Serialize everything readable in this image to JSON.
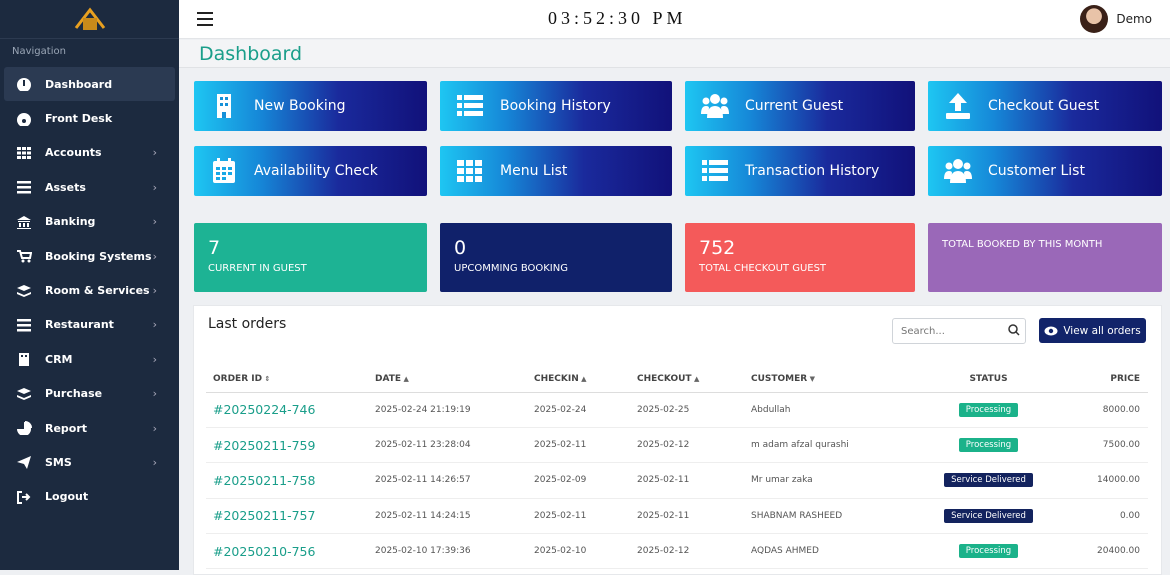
{
  "header": {
    "clock": "03:52:30 PM",
    "user": "Demo"
  },
  "sidebar": {
    "heading": "Navigation",
    "items": [
      "Dashboard",
      "Front Desk",
      "Accounts",
      "Assets",
      "Banking",
      "Booking Systems",
      "Room & Services",
      "Restaurant",
      "CRM",
      "Purchase",
      "Report",
      "SMS",
      "Logout"
    ]
  },
  "page_title": "Dashboard",
  "tiles": [
    "New Booking",
    "Booking History",
    "Current Guest",
    "Checkout Guest",
    "Availability Check",
    "Menu List",
    "Transaction History",
    "Customer List"
  ],
  "stats": [
    {
      "value": 7,
      "label": "CURRENT IN GUEST"
    },
    {
      "value": 0,
      "label": "UPCOMMING BOOKING"
    },
    {
      "value": 752,
      "label": "TOTAL CHECKOUT GUEST"
    },
    {
      "label": "TOTAL BOOKED BY THIS MONTH"
    }
  ],
  "orders": {
    "title": "Last orders",
    "search_placeholder": "Search...",
    "view_all": "View all orders",
    "columns": [
      "ORDER ID",
      "DATE",
      "CHECKIN",
      "CHECKOUT",
      "CUSTOMER",
      "STATUS",
      "PRICE"
    ],
    "rows": [
      [
        "#20250224-746",
        "2025-02-24 21:19:19",
        "2025-02-24",
        "2025-02-25",
        "Abdullah",
        "Processing",
        "8000.00"
      ],
      [
        "#20250211-759",
        "2025-02-11 23:28:04",
        "2025-02-11",
        "2025-02-12",
        "m adam afzal qurashi",
        "Processing",
        "7500.00"
      ],
      [
        "#20250211-758",
        "2025-02-11 14:26:57",
        "2025-02-09",
        "2025-02-11",
        "Mr umar zaka",
        "Service Delivered",
        "14000.00"
      ],
      [
        "#20250211-757",
        "2025-02-11 14:24:15",
        "2025-02-11",
        "2025-02-11",
        "SHABNAM RASHEED",
        "Service Delivered",
        "0.00"
      ],
      [
        "#20250210-756",
        "2025-02-10 17:39:36",
        "2025-02-10",
        "2025-02-12",
        "AQDAS AHMED",
        "Processing",
        "20400.00"
      ]
    ]
  }
}
